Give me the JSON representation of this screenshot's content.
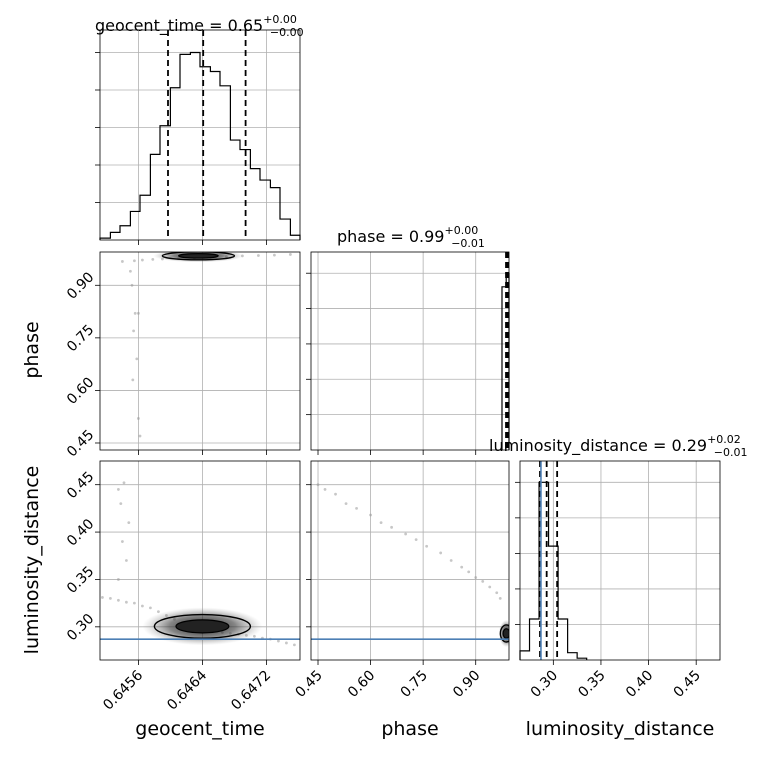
{
  "chart_data": {
    "type": "corner",
    "parameters": [
      "geocent_time",
      "phase",
      "luminosity_distance"
    ],
    "truths": {
      "luminosity_distance": 0.287
    },
    "grid": true,
    "titles": [
      {
        "param": "geocent_time",
        "prefix": "geocent_time = ",
        "value": "0.65",
        "plus": "+0.00",
        "minus": "−0.00"
      },
      {
        "param": "phase",
        "prefix": "phase = ",
        "value": "0.99",
        "plus": "+0.00",
        "minus": "−0.01"
      },
      {
        "param": "luminosity_distance",
        "prefix": "luminosity_distance = ",
        "value": "0.29",
        "plus": "+0.02",
        "minus": "−0.01"
      }
    ],
    "axes": {
      "geocent_time": {
        "label": "geocent_time",
        "range": [
          0.64512,
          0.64762
        ],
        "ticks": [
          0.6456,
          0.6464,
          0.6472
        ],
        "tick_labels": [
          "0.6456",
          "0.6464",
          "0.6472"
        ]
      },
      "phase": {
        "label": "phase",
        "range": [
          0.43,
          0.995
        ],
        "ticks": [
          0.45,
          0.6,
          0.75,
          0.9
        ],
        "tick_labels": [
          "0.45",
          "0.60",
          "0.75",
          "0.90"
        ]
      },
      "luminosity_distance": {
        "label": "luminosity_distance",
        "range": [
          0.265,
          0.475
        ],
        "ticks": [
          0.3,
          0.35,
          0.4,
          0.45
        ],
        "tick_labels": [
          "0.30",
          "0.35",
          "0.40",
          "0.45"
        ]
      }
    },
    "histograms": {
      "geocent_time": {
        "bin_edges": [
          0.64512,
          0.64525,
          0.64537,
          0.6455,
          0.64562,
          0.64575,
          0.64587,
          0.646,
          0.64612,
          0.64625,
          0.64637,
          0.6465,
          0.64662,
          0.64675,
          0.64687,
          0.647,
          0.64712,
          0.64725,
          0.64737,
          0.6475,
          0.64762
        ],
        "counts": [
          2,
          8,
          15,
          30,
          47,
          90,
          120,
          160,
          195,
          197,
          182,
          177,
          162,
          105,
          95,
          75,
          63,
          55,
          22,
          5
        ],
        "quantiles": [
          0.64597,
          0.64641,
          0.64694
        ]
      },
      "phase": {
        "bin_edges": [
          0.975,
          0.987,
          0.995
        ],
        "counts": [
          180,
          195
        ],
        "quantiles": [
          0.9865,
          0.9905,
          0.9925
        ]
      },
      "luminosity_distance": {
        "bin_edges": [
          0.265,
          0.275,
          0.285,
          0.295,
          0.305,
          0.315,
          0.325,
          0.335
        ],
        "counts": [
          10,
          45,
          195,
          125,
          45,
          8,
          2
        ],
        "quantiles": [
          0.286,
          0.293,
          0.304
        ]
      }
    },
    "samples": {
      "geocent_time_vs_phase": {
        "x": [
          0.6454,
          0.64555,
          0.64565,
          0.64578,
          0.6459,
          0.6461,
          0.6463,
          0.6465,
          0.6467,
          0.6469,
          0.6471,
          0.6473,
          0.6475,
          0.6455,
          0.64552,
          0.64556,
          0.64554,
          0.6456,
          0.64558,
          0.64553,
          0.6456,
          0.64562
        ],
        "y": [
          0.968,
          0.97,
          0.972,
          0.974,
          0.975,
          0.976,
          0.978,
          0.98,
          0.982,
          0.984,
          0.985,
          0.986,
          0.988,
          0.94,
          0.9,
          0.82,
          0.77,
          0.82,
          0.69,
          0.63,
          0.52,
          0.47
        ]
      },
      "geocent_time_vs_luminosity_distance": {
        "x": [
          0.64515,
          0.64525,
          0.64535,
          0.64545,
          0.64555,
          0.64565,
          0.64575,
          0.64585,
          0.64595,
          0.64605,
          0.64615,
          0.64625,
          0.64635,
          0.64645,
          0.64655,
          0.64665,
          0.64675,
          0.64685,
          0.64695,
          0.64705,
          0.64715,
          0.64725,
          0.64735,
          0.64745,
          0.64755,
          0.64535,
          0.64545,
          0.6454,
          0.64548,
          0.64538,
          0.64535,
          0.64542
        ],
        "y": [
          0.331,
          0.33,
          0.328,
          0.326,
          0.325,
          0.322,
          0.32,
          0.316,
          0.312,
          0.308,
          0.304,
          0.302,
          0.3,
          0.298,
          0.296,
          0.294,
          0.293,
          0.292,
          0.291,
          0.29,
          0.288,
          0.287,
          0.285,
          0.283,
          0.281,
          0.35,
          0.37,
          0.39,
          0.41,
          0.43,
          0.445,
          0.452
        ]
      },
      "phase_vs_luminosity_distance": {
        "x": [
          0.45,
          0.47,
          0.5,
          0.53,
          0.56,
          0.6,
          0.63,
          0.66,
          0.7,
          0.73,
          0.76,
          0.8,
          0.83,
          0.86,
          0.88,
          0.9,
          0.92,
          0.94,
          0.96,
          0.97
        ],
        "y": [
          0.45,
          0.445,
          0.44,
          0.43,
          0.425,
          0.418,
          0.41,
          0.405,
          0.398,
          0.392,
          0.385,
          0.378,
          0.37,
          0.363,
          0.358,
          0.352,
          0.348,
          0.342,
          0.336,
          0.33
        ]
      }
    },
    "contour_regions": {
      "geocent_time_vs_phase": {
        "x": [
          0.6459,
          0.6468
        ],
        "y": [
          0.979,
          0.989
        ]
      },
      "geocent_time_vs_luminosity_distance": {
        "x": [
          0.6458,
          0.647
        ],
        "y": [
          0.288,
          0.313
        ]
      },
      "phase_vs_luminosity_distance": {
        "x": [
          0.98,
          0.995
        ],
        "y": [
          0.284,
          0.302
        ]
      }
    }
  }
}
